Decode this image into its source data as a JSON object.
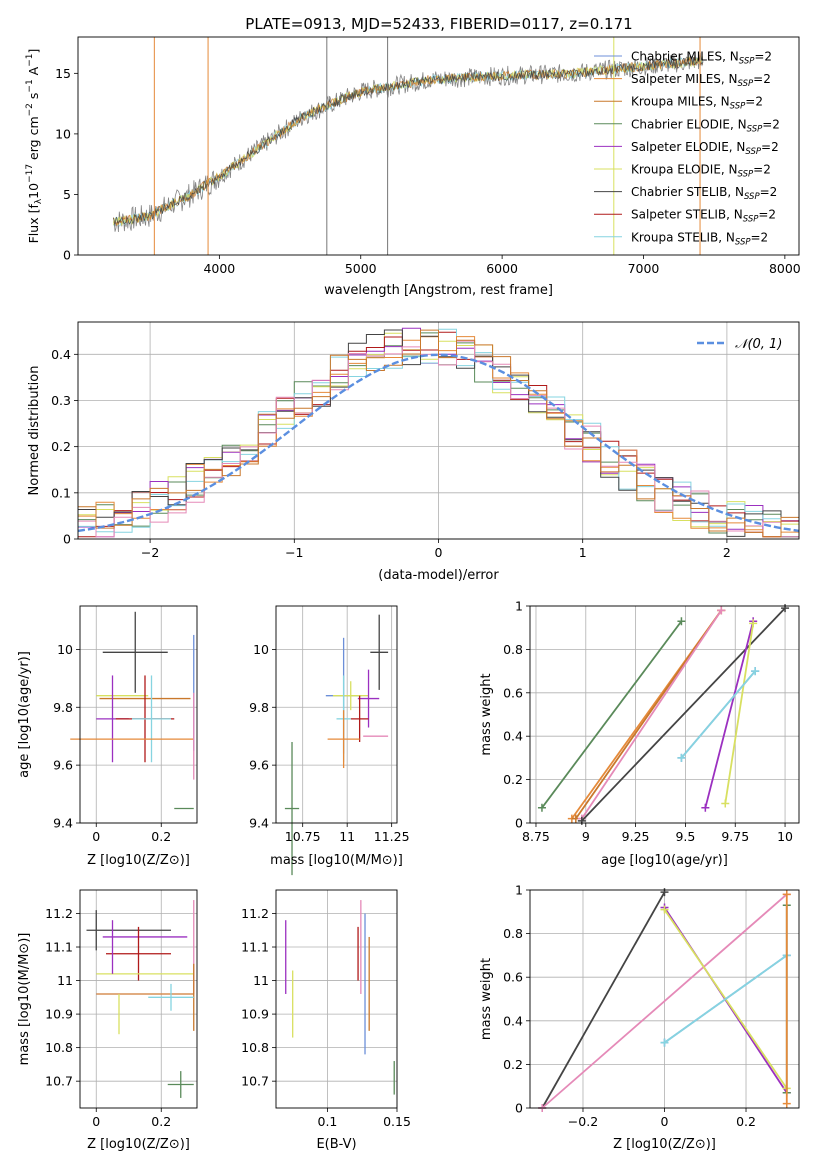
{
  "title": "PLATE=0913, MJD=52433, FIBERID=0117, z=0.171",
  "colors": {
    "c1": "#6C8FD8",
    "c2": "#E58A3A",
    "c3": "#C9782C",
    "c4": "#5A8A5A",
    "c5": "#9B30C0",
    "c6": "#D8E060",
    "c7": "#444444",
    "c8": "#B01A1A",
    "c9": "#86D4E0",
    "pink": "#E58AB8",
    "norm": "#5B8FE0",
    "grey": "#777777"
  },
  "legend_labels": [
    "Chabrier MILES, N<sub>SSP</sub>=2",
    "Salpeter MILES, N<sub>SSP</sub>=2",
    "Kroupa MILES, N<sub>SSP</sub>=2",
    "Chabrier ELODIE, N<sub>SSP</sub>=2",
    "Salpeter ELODIE, N<sub>SSP</sub>=2",
    "Kroupa ELODIE, N<sub>SSP</sub>=2",
    "Chabrier STELIB, N<sub>SSP</sub>=2",
    "Salpeter STELIB, N<sub>SSP</sub>=2",
    "Kroupa STELIB, N<sub>SSP</sub>=2"
  ],
  "chart_data": [
    {
      "id": "spectrum",
      "type": "line",
      "xlabel": "wavelength [Angstrom, rest frame]",
      "ylabel": "Flux [f$_\\lambda$10$^{-17}$ erg cm$^{-2}$ s$^{-1}$ A$^{-1}$]",
      "xlim": [
        3000,
        8100
      ],
      "ylim": [
        0,
        18
      ],
      "xticks": [
        4000,
        5000,
        6000,
        7000,
        8000
      ],
      "yticks": [
        0,
        5,
        10,
        15
      ],
      "x": [
        3250,
        3500,
        3800,
        4000,
        4300,
        4600,
        5000,
        5500,
        6000,
        6500,
        7000,
        7400
      ],
      "series": [
        {
          "name": "data",
          "values": [
            2.7,
            3.2,
            5.0,
            6.5,
            9.0,
            11.5,
            13.5,
            14.5,
            14.8,
            15.0,
            15.6,
            16.0
          ]
        }
      ]
    },
    {
      "id": "residuals",
      "type": "histogram",
      "xlabel": "(data-model)/error",
      "ylabel": "Normed distribution",
      "xlim": [
        -2.5,
        2.5
      ],
      "ylim": [
        0,
        0.47
      ],
      "xticks": [
        -2,
        -1,
        0,
        1,
        2
      ],
      "yticks": [
        0.0,
        0.1,
        0.2,
        0.3,
        0.4
      ],
      "legend": "$\\mathcal{N}(0,1)$"
    },
    {
      "id": "age_vs_Z",
      "type": "errorbar",
      "xlabel": "Z [log10(Z/Z⊙)]",
      "ylabel": "age  [log10(age/yr)]",
      "xlim": [
        -0.05,
        0.31
      ],
      "ylim": [
        9.4,
        10.15
      ],
      "xticks": [
        0.0,
        0.2
      ],
      "yticks": [
        9.4,
        9.6,
        9.8,
        10.0
      ],
      "points": [
        {
          "x": 0.12,
          "y": 9.99,
          "xerr": 0.1,
          "yerr": 0.14,
          "c": "c7"
        },
        {
          "x": 0.3,
          "y": 9.85,
          "xerr": 0.0,
          "yerr": 0.2,
          "c": "c1"
        },
        {
          "x": 0.08,
          "y": 9.84,
          "xerr": 0.08,
          "yerr": 0.0,
          "c": "c6"
        },
        {
          "x": 0.15,
          "y": 9.83,
          "xerr": 0.14,
          "yerr": 0.0,
          "c": "c3"
        },
        {
          "x": 0.05,
          "y": 9.76,
          "xerr": 0.05,
          "yerr": 0.15,
          "c": "c5"
        },
        {
          "x": 0.15,
          "y": 9.76,
          "xerr": 0.09,
          "yerr": 0.15,
          "c": "c8"
        },
        {
          "x": 0.17,
          "y": 9.76,
          "xerr": 0.06,
          "yerr": 0.15,
          "c": "c9"
        },
        {
          "x": 0.11,
          "y": 9.69,
          "xerr": 0.19,
          "yerr": 0.0,
          "c": "c2"
        },
        {
          "x": 0.3,
          "y": 9.7,
          "xerr": 0.0,
          "yerr": 0.15,
          "c": "pink"
        },
        {
          "x": 0.27,
          "y": 9.45,
          "xerr": 0.03,
          "yerr": 0.0,
          "c": "c4"
        }
      ]
    },
    {
      "id": "age_vs_mass",
      "type": "errorbar",
      "xlabel": "mass [log10(M/M⊙)]",
      "ylabel": "",
      "xlim": [
        10.6,
        11.28
      ],
      "ylim": [
        9.4,
        10.15
      ],
      "xticks": [
        10.75,
        11.0,
        11.25
      ],
      "yticks": [
        9.4,
        9.6,
        9.8,
        10.0
      ],
      "points": [
        {
          "x": 11.18,
          "y": 9.99,
          "xerr": 0.05,
          "yerr": 0.13,
          "c": "c7"
        },
        {
          "x": 10.98,
          "y": 9.84,
          "xerr": 0.1,
          "yerr": 0.2,
          "c": "c1"
        },
        {
          "x": 11.02,
          "y": 9.84,
          "xerr": 0.1,
          "yerr": 0.05,
          "c": "c6"
        },
        {
          "x": 11.12,
          "y": 9.83,
          "xerr": 0.06,
          "yerr": 0.1,
          "c": "c5"
        },
        {
          "x": 11.07,
          "y": 9.76,
          "xerr": 0.05,
          "yerr": 0.08,
          "c": "c8"
        },
        {
          "x": 10.98,
          "y": 9.76,
          "xerr": 0.04,
          "yerr": 0.15,
          "c": "c9"
        },
        {
          "x": 10.98,
          "y": 9.69,
          "xerr": 0.09,
          "yerr": 0.1,
          "c": "c2"
        },
        {
          "x": 11.16,
          "y": 9.7,
          "xerr": 0.07,
          "yerr": 0.0,
          "c": "pink"
        },
        {
          "x": 10.69,
          "y": 9.45,
          "xerr": 0.04,
          "yerr": 0.23,
          "c": "c4"
        }
      ]
    },
    {
      "id": "weight_vs_age",
      "type": "line",
      "xlabel": "age  [log10(age/yr)]",
      "ylabel": "mass weight",
      "xlim": [
        8.72,
        10.07
      ],
      "ylim": [
        0,
        1
      ],
      "xticks": [
        8.75,
        9.0,
        9.25,
        9.5,
        9.75,
        10.0
      ],
      "yticks": [
        0.0,
        0.2,
        0.4,
        0.6,
        0.8,
        1.0
      ],
      "series": [
        {
          "c": "c4",
          "points": [
            [
              8.78,
              0.07
            ],
            [
              9.48,
              0.93
            ]
          ]
        },
        {
          "c": "c2",
          "points": [
            [
              8.93,
              0.02
            ],
            [
              9.68,
              0.98
            ]
          ]
        },
        {
          "c": "c3",
          "points": [
            [
              8.95,
              0.02
            ],
            [
              9.68,
              0.98
            ]
          ]
        },
        {
          "c": "pink",
          "points": [
            [
              8.98,
              0.02
            ],
            [
              9.68,
              0.98
            ]
          ]
        },
        {
          "c": "c7",
          "points": [
            [
              8.98,
              0.01
            ],
            [
              10.0,
              0.99
            ]
          ]
        },
        {
          "c": "c5",
          "points": [
            [
              9.6,
              0.07
            ],
            [
              9.84,
              0.93
            ]
          ]
        },
        {
          "c": "c6",
          "points": [
            [
              9.7,
              0.09
            ],
            [
              9.84,
              0.92
            ]
          ]
        },
        {
          "c": "c1",
          "points": [
            [
              9.48,
              0.3
            ],
            [
              9.85,
              0.7
            ]
          ]
        },
        {
          "c": "c9",
          "points": [
            [
              9.48,
              0.3
            ],
            [
              9.85,
              0.7
            ]
          ]
        }
      ]
    },
    {
      "id": "mass_vs_Z",
      "type": "errorbar",
      "xlabel": "Z [log10(Z/Z⊙)]",
      "ylabel": "mass [log10(M/M⊙)]",
      "xlim": [
        -0.05,
        0.31
      ],
      "ylim": [
        10.62,
        11.27
      ],
      "xticks": [
        0.0,
        0.2
      ],
      "yticks": [
        10.7,
        10.8,
        10.9,
        11.0,
        11.1,
        11.2
      ],
      "points": [
        {
          "x": 0.1,
          "y": 11.15,
          "xerr": 0.13,
          "yerr": 0.0,
          "c": "c7"
        },
        {
          "x": 0.0,
          "y": 11.15,
          "xerr": 0.0,
          "yerr": 0.06,
          "c": "c7"
        },
        {
          "x": 0.15,
          "y": 11.13,
          "xerr": 0.13,
          "yerr": 0.0,
          "c": "c5"
        },
        {
          "x": 0.13,
          "y": 11.08,
          "xerr": 0.1,
          "yerr": 0.08,
          "c": "c8"
        },
        {
          "x": 0.3,
          "y": 11.1,
          "xerr": 0.0,
          "yerr": 0.14,
          "c": "pink"
        },
        {
          "x": 0.15,
          "y": 11.02,
          "xerr": 0.15,
          "yerr": 0.0,
          "c": "c6"
        },
        {
          "x": 0.15,
          "y": 10.96,
          "xerr": 0.15,
          "yerr": 0.0,
          "c": "c1"
        },
        {
          "x": 0.15,
          "y": 10.96,
          "xerr": 0.15,
          "yerr": 0.0,
          "c": "c2"
        },
        {
          "x": 0.3,
          "y": 10.95,
          "xerr": 0.0,
          "yerr": 0.1,
          "c": "c3"
        },
        {
          "x": 0.23,
          "y": 10.95,
          "xerr": 0.07,
          "yerr": 0.04,
          "c": "c9"
        },
        {
          "x": 0.05,
          "y": 11.1,
          "xerr": 0.0,
          "yerr": 0.08,
          "c": "c5"
        },
        {
          "x": 0.07,
          "y": 10.9,
          "xerr": 0.0,
          "yerr": 0.06,
          "c": "c6"
        },
        {
          "x": 0.26,
          "y": 10.69,
          "xerr": 0.04,
          "yerr": 0.04,
          "c": "c4"
        }
      ]
    },
    {
      "id": "mass_vs_ebv",
      "type": "errorbar",
      "xlabel": "E(B-V)",
      "ylabel": "",
      "xlim": [
        0.063,
        0.15
      ],
      "ylim": [
        10.62,
        11.27
      ],
      "xticks": [
        0.1,
        0.15
      ],
      "yticks": [
        10.7,
        10.8,
        10.9,
        11.0,
        11.1,
        11.2
      ],
      "points": [
        {
          "x": 0.07,
          "y": 11.07,
          "xerr": 0.0,
          "yerr": 0.11,
          "c": "c5"
        },
        {
          "x": 0.075,
          "y": 10.93,
          "xerr": 0.0,
          "yerr": 0.1,
          "c": "c6"
        },
        {
          "x": 0.122,
          "y": 11.08,
          "xerr": 0.0,
          "yerr": 0.08,
          "c": "c8"
        },
        {
          "x": 0.124,
          "y": 11.1,
          "xerr": 0.0,
          "yerr": 0.14,
          "c": "pink"
        },
        {
          "x": 0.127,
          "y": 10.99,
          "xerr": 0.0,
          "yerr": 0.21,
          "c": "c1"
        },
        {
          "x": 0.13,
          "y": 10.99,
          "xerr": 0.0,
          "yerr": 0.14,
          "c": "c3"
        },
        {
          "x": 0.148,
          "y": 10.71,
          "xerr": 0.0,
          "yerr": 0.05,
          "c": "c4"
        }
      ]
    },
    {
      "id": "weight_vs_Z",
      "type": "line",
      "xlabel": "Z [log10(Z/Z⊙)]",
      "ylabel": "mass weight",
      "xlim": [
        -0.33,
        0.33
      ],
      "ylim": [
        0,
        1
      ],
      "xticks": [
        -0.2,
        0.0,
        0.2
      ],
      "yticks": [
        0.0,
        0.2,
        0.4,
        0.6,
        0.8,
        1.0
      ],
      "series": [
        {
          "c": "c7",
          "points": [
            [
              -0.3,
              0.0
            ],
            [
              0.0,
              0.99
            ]
          ]
        },
        {
          "c": "pink",
          "points": [
            [
              -0.3,
              0.0
            ],
            [
              0.3,
              0.98
            ]
          ]
        },
        {
          "c": "c5",
          "points": [
            [
              0.0,
              0.92
            ],
            [
              0.3,
              0.07
            ]
          ]
        },
        {
          "c": "c6",
          "points": [
            [
              0.0,
              0.91
            ],
            [
              0.3,
              0.09
            ]
          ]
        },
        {
          "c": "c1",
          "points": [
            [
              0.0,
              0.3
            ],
            [
              0.3,
              0.7
            ]
          ]
        },
        {
          "c": "c9",
          "points": [
            [
              0.0,
              0.3
            ],
            [
              0.3,
              0.7
            ]
          ]
        },
        {
          "c": "c4",
          "points": [
            [
              0.3,
              0.07
            ],
            [
              0.3,
              0.93
            ]
          ]
        },
        {
          "c": "c2",
          "points": [
            [
              0.3,
              0.02
            ],
            [
              0.3,
              0.98
            ]
          ]
        }
      ]
    }
  ]
}
